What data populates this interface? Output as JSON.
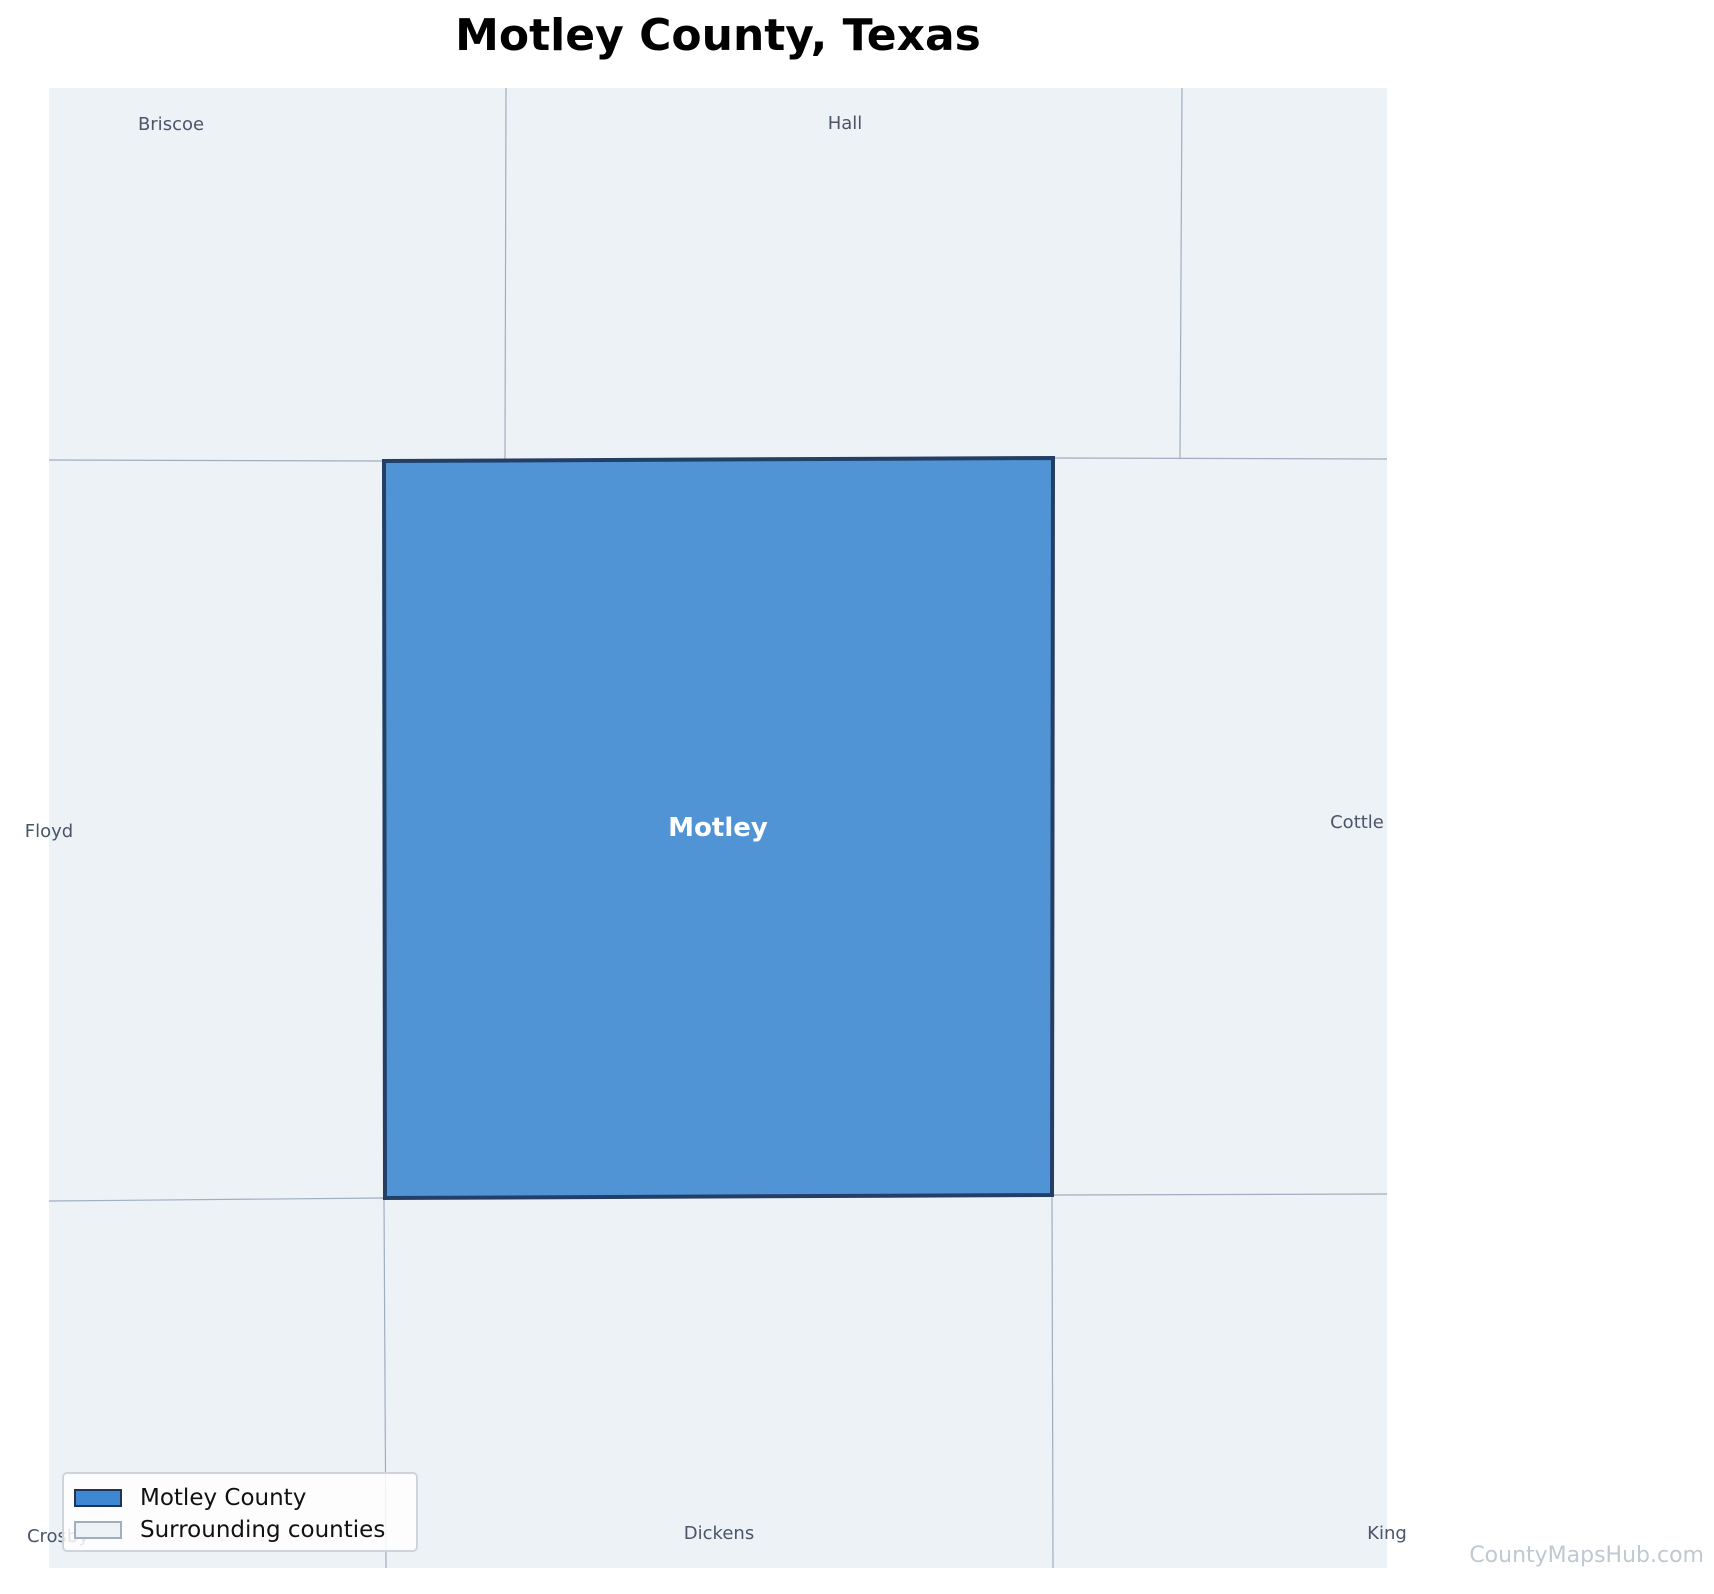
{
  "title": "Motley County, Texas",
  "colors": {
    "main_fill": "#5194d5",
    "main_stroke": "#243f66",
    "surrounding_fill": "#edf2f7",
    "surrounding_stroke": "#a0aec0"
  },
  "main_county": {
    "name": "Motley"
  },
  "surrounding_counties": [
    "Briscoe",
    "Hall",
    "Floyd",
    "Cottle",
    "Crosby",
    "Dickens",
    "King"
  ],
  "legend": {
    "items": [
      {
        "label": "Motley County"
      },
      {
        "label": "Surrounding counties"
      }
    ]
  },
  "credit": "CountyMapsHub.com"
}
